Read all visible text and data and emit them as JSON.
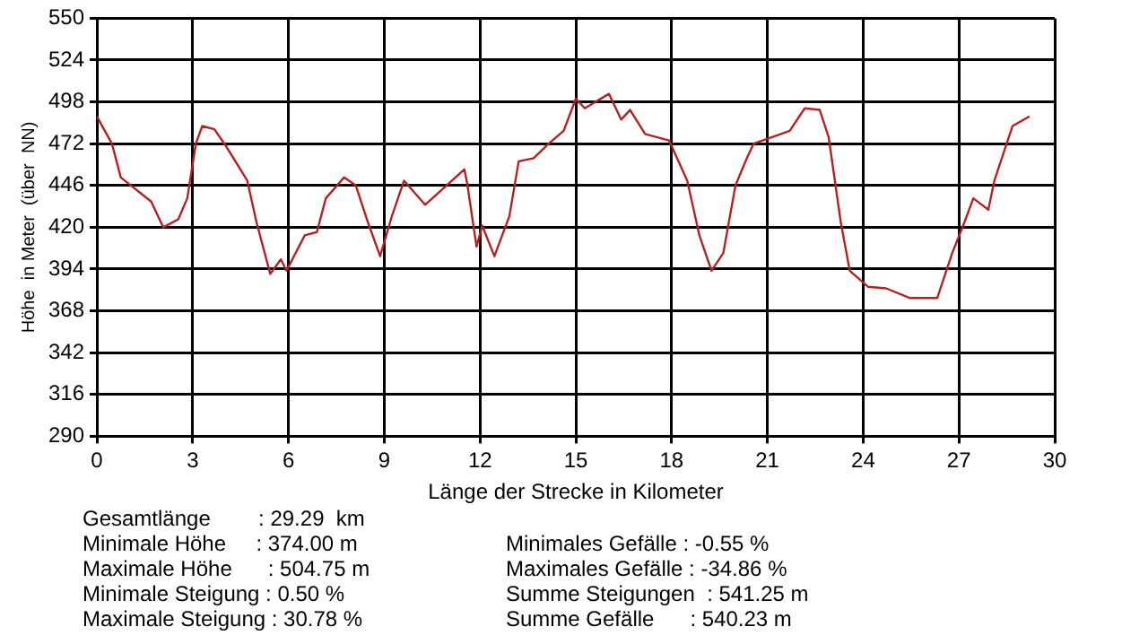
{
  "chart_data": {
    "type": "line",
    "xlabel": "Länge der Strecke in Kilometer",
    "ylabel": "Höhe  in Meter  (über  NN)",
    "series": [
      {
        "color": "#b22222",
        "x": [
          0,
          0.47,
          0.75,
          1.7,
          2.08,
          2.55,
          2.83,
          3.1,
          3.3,
          3.68,
          4.06,
          4.71,
          5.0,
          5.43,
          5.76,
          5.94,
          6.51,
          6.89,
          7.17,
          7.74,
          8.11,
          8.49,
          8.87,
          9.24,
          9.62,
          10.28,
          11.51,
          11.6,
          11.89,
          12.07,
          12.45,
          12.92,
          13.21,
          13.68,
          14.15,
          14.62,
          15.0,
          15.28,
          16.04,
          16.42,
          16.7,
          17.17,
          17.92,
          18.49,
          18.87,
          19.25,
          19.62,
          20.0,
          20.38,
          20.57,
          21.13,
          21.7,
          22.17,
          22.64,
          22.92,
          23.3,
          23.58,
          24.15,
          24.72,
          25.47,
          26.32,
          26.79,
          27.17,
          27.45,
          27.92,
          28.11,
          28.68,
          29.21
        ],
        "values": [
          489,
          472,
          451,
          436,
          420,
          425,
          438,
          472,
          483,
          481,
          470,
          449,
          423,
          391,
          400,
          393,
          415,
          417,
          438,
          451,
          446,
          423,
          402,
          427,
          449,
          434,
          456,
          447,
          408,
          421,
          402,
          427,
          461,
          463,
          472,
          480,
          500,
          494,
          503,
          487,
          493,
          478,
          474,
          449,
          415,
          393,
          404,
          446,
          464,
          472,
          476,
          480,
          494,
          493,
          476,
          423,
          393,
          383,
          382,
          376,
          376,
          404,
          423,
          438,
          431,
          449,
          483,
          489
        ]
      }
    ],
    "xlim": [
      0,
      30
    ],
    "xticks": [
      0,
      3,
      6,
      9,
      12,
      15,
      18,
      21,
      24,
      27,
      30
    ],
    "ylim": [
      290,
      550
    ],
    "yticks": [
      290,
      316,
      342,
      368,
      394,
      420,
      446,
      472,
      498,
      524,
      550
    ],
    "grid": true,
    "legend": false,
    "marker": "none",
    "line_style": "solid",
    "annotations": [
      "Gesamtlänge        : 29.29  km",
      "Minimale Höhe     : 374.00 m",
      "Maximale Höhe      : 504.75 m",
      "Minimale Steigung : 0.50 %",
      "Maximale Steigung : 30.78 %",
      "Minimales Gefälle : -0.55 %",
      "Maximales Gefälle : -34.86 %",
      "Summe Steigungen  : 541.25 m",
      "Summe Gefälle      : 540.23 m"
    ]
  }
}
